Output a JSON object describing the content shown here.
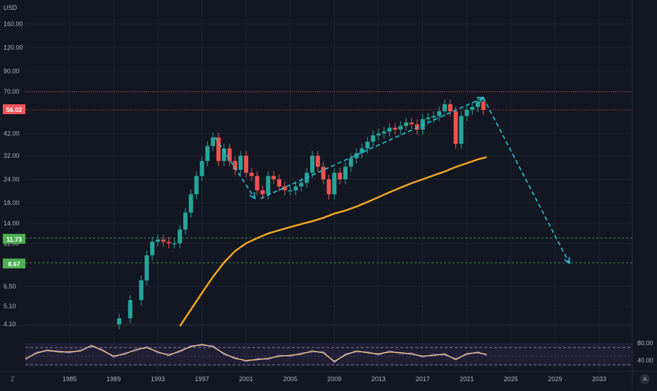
{
  "colors": {
    "background": "#131722",
    "grid": "#1f2433",
    "axis_text": "#b2b5be",
    "candle_up": "#26a69a",
    "candle_down": "#ef5350",
    "moving_average": "#f7a823",
    "projection": "#26c6da",
    "price_line_red": "#f0545a",
    "level_green": "#4caf50",
    "oscillator_line": "#f0d28a",
    "oscillator_signal": "#7e57c2",
    "oscillator_band": "#2a2545"
  },
  "header": {
    "currency": "USD"
  },
  "footer": {
    "left_icon": "Z",
    "right_icon": "A"
  },
  "axes": {
    "price_ticks": [
      "160.00",
      "120.00",
      "90.00",
      "70.00",
      "42.00",
      "32.00",
      "24.00",
      "18.00",
      "14.00",
      "11.00",
      "6.50",
      "5.10",
      "4.10"
    ],
    "year_ticks": [
      "1985",
      "1989",
      "1993",
      "1997",
      "2001",
      "2005",
      "2009",
      "2013",
      "2017",
      "2021",
      "2025",
      "2029",
      "2033"
    ],
    "oscillator_ticks": [
      "80.00",
      "40.00"
    ]
  },
  "price_labels": {
    "last_price": "56.02",
    "level_1": "11.73",
    "level_2": "8.67"
  },
  "chart_data": [
    {
      "type": "line",
      "title": "",
      "xlabel": "",
      "ylabel": "USD",
      "y_scale": "log",
      "ylim": [
        4.0,
        200
      ],
      "x_range": [
        1981,
        2036
      ],
      "horizontal_levels": [
        70.0,
        56.02,
        11.73,
        8.67
      ],
      "series": [
        {
          "style": "candlestick",
          "x": [
            1989.5,
            1990.5,
            1991.5,
            1992.0,
            1992.5,
            1993.0,
            1993.5,
            1994.0,
            1994.5,
            1995.0,
            1995.5,
            1996.0,
            1996.5,
            1997.0,
            1997.5,
            1998.0,
            1998.5,
            1999.0,
            1999.5,
            2000.0,
            2000.5,
            2001.0,
            2001.5,
            2002.0,
            2002.5,
            2003.0,
            2003.5,
            2004.0,
            2004.5,
            2005.0,
            2005.5,
            2006.0,
            2006.5,
            2007.0,
            2007.5,
            2008.0,
            2008.5,
            2009.0,
            2009.5,
            2010.0,
            2010.5,
            2011.0,
            2011.5,
            2012.0,
            2012.5,
            2013.0,
            2013.5,
            2014.0,
            2014.5,
            2015.0,
            2015.5,
            2016.0,
            2016.5,
            2017.0,
            2017.5,
            2018.0,
            2018.5,
            2019.0,
            2019.5,
            2020.0,
            2020.5,
            2021.0,
            2021.5,
            2022.0,
            2022.5
          ],
          "y": [
            4.4,
            5.5,
            7.0,
            9.5,
            11.2,
            11.5,
            11.2,
            11.0,
            11.0,
            13.0,
            16.0,
            20.0,
            25.0,
            30.0,
            36.0,
            40.0,
            30.0,
            35.0,
            30.0,
            27.0,
            32.0,
            26.0,
            25.0,
            21.0,
            20.0,
            25.0,
            24.0,
            22.0,
            21.0,
            21.0,
            22.0,
            23.0,
            26.0,
            32.0,
            28.0,
            24.0,
            20.0,
            26.0,
            24.0,
            28.0,
            31.0,
            33.0,
            35.0,
            38.0,
            41.0,
            42.0,
            43.0,
            45.0,
            44.0,
            46.0,
            48.0,
            47.0,
            44.0,
            50.0,
            51.0,
            52.0,
            55.0,
            60.0,
            55.0,
            37.0,
            52.0,
            56.0,
            58.0,
            62.0,
            56.0
          ]
        },
        {
          "name": "",
          "style": "line",
          "x": [
            1995,
            1996,
            1997,
            1998,
            1999,
            2000,
            2001,
            2002,
            2003,
            2004,
            2005,
            2006,
            2007,
            2008,
            2009,
            2010,
            2011,
            2012,
            2013,
            2014,
            2015,
            2016,
            2017,
            2018,
            2019,
            2020,
            2021,
            2022,
            2022.8
          ],
          "y": [
            4.0,
            4.9,
            6.0,
            7.3,
            8.7,
            10.0,
            11.0,
            11.7,
            12.4,
            12.9,
            13.4,
            13.9,
            14.4,
            15.0,
            15.8,
            16.4,
            17.2,
            18.2,
            19.3,
            20.5,
            21.7,
            22.9,
            24.0,
            25.2,
            26.4,
            27.9,
            29.2,
            30.6,
            31.5
          ]
        },
        {
          "name": "",
          "style": "dashed-projection",
          "x": [
            1998.2,
            2001.8,
            2002.3,
            2022.5,
            2030.3
          ],
          "y": [
            40.0,
            19.0,
            19.0,
            65.0,
            8.6
          ]
        }
      ]
    },
    {
      "type": "line",
      "title": "",
      "xlabel": "",
      "ylabel": "",
      "ylim": [
        20,
        95
      ],
      "x_range": [
        1981,
        2036
      ],
      "bands": [
        70,
        30
      ],
      "series": [
        {
          "name": "",
          "x": [
            1981,
            1982,
            1983,
            1984,
            1985,
            1986,
            1987,
            1988,
            1989,
            1990,
            1991,
            1992,
            1993,
            1994,
            1995,
            1996,
            1997,
            1998,
            1999,
            2000,
            2001,
            2002,
            2003,
            2004,
            2005,
            2006,
            2007,
            2008,
            2009,
            2010,
            2011,
            2012,
            2013,
            2014,
            2015,
            2016,
            2017,
            2018,
            2019,
            2020,
            2021,
            2022,
            2022.8
          ],
          "y": [
            44,
            57,
            64,
            60,
            60,
            62,
            75,
            63,
            50,
            55,
            65,
            70,
            60,
            52,
            62,
            72,
            77,
            72,
            56,
            45,
            40,
            42,
            45,
            50,
            52,
            55,
            62,
            58,
            38,
            53,
            62,
            58,
            55,
            60,
            58,
            55,
            50,
            52,
            55,
            42,
            56,
            58,
            54
          ]
        }
      ]
    }
  ]
}
